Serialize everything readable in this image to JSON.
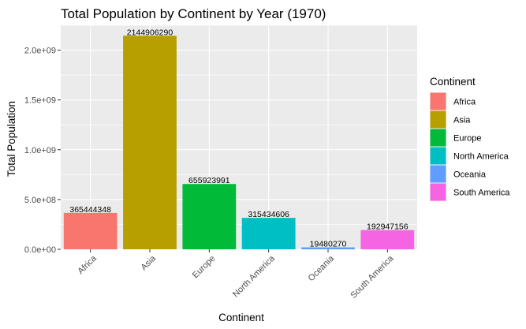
{
  "chart_data": {
    "type": "bar",
    "title": "Total Population by Continent by Year (1970)",
    "xlabel": "Continent",
    "ylabel": "Total Population",
    "categories": [
      "Africa",
      "Asia",
      "Europe",
      "North America",
      "Oceania",
      "South America"
    ],
    "values": [
      365444348,
      2144906290,
      655923991,
      315434606,
      19480270,
      192947156
    ],
    "data_labels": [
      "365444348",
      "2144906290",
      "655923991",
      "315434606",
      "19480270",
      "192947156"
    ],
    "colors": [
      "#F8766D",
      "#B79F00",
      "#00BA38",
      "#00BFC4",
      "#619CFF",
      "#F564E3"
    ],
    "ylim": [
      0,
      2250000000
    ],
    "y_ticks": [
      0,
      500000000,
      1000000000,
      1500000000,
      2000000000
    ],
    "y_tick_labels": [
      "0.0e+00",
      "5.0e+08",
      "1.0e+09",
      "1.5e+09",
      "2.0e+09"
    ],
    "grid": true,
    "legend": {
      "title": "Continent",
      "position": "right",
      "labels": [
        "Africa",
        "Asia",
        "Europe",
        "North America",
        "Oceania",
        "South America"
      ]
    }
  }
}
